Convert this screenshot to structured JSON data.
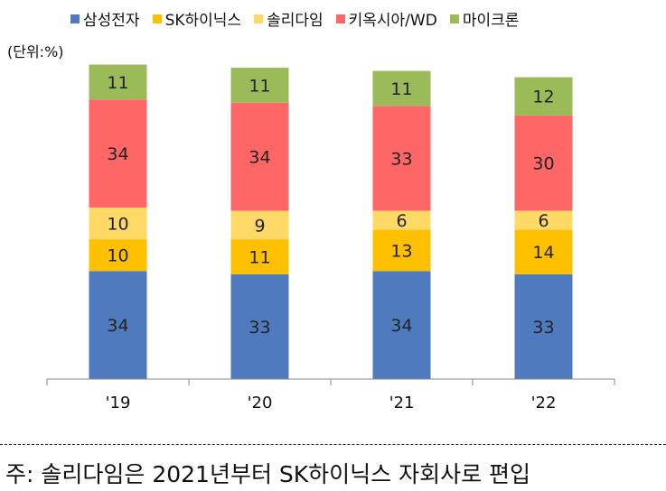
{
  "chart_data": {
    "type": "bar",
    "stacked": true,
    "unit_label": "(단위:%)",
    "categories": [
      "'19",
      "'20",
      "'21",
      "'22"
    ],
    "series": [
      {
        "name": "삼성전자",
        "color": "#4F7BBE",
        "values": [
          34,
          33,
          34,
          33
        ]
      },
      {
        "name": "SK하이닉스",
        "color": "#FFC000",
        "values": [
          10,
          11,
          13,
          14
        ]
      },
      {
        "name": "솔리다임",
        "color": "#FFD966",
        "values": [
          10,
          9,
          6,
          6
        ]
      },
      {
        "name": "키옥시아/WD",
        "color": "#FF6666",
        "values": [
          34,
          34,
          33,
          30
        ]
      },
      {
        "name": "마이크론",
        "color": "#9BBB59",
        "values": [
          11,
          11,
          11,
          12
        ]
      }
    ],
    "ylim": [
      0,
      100
    ],
    "grid": false,
    "legend_position": "top"
  },
  "footnote": "주: 솔리다임은 2021년부터 SK하이닉스 자회사로 편입"
}
